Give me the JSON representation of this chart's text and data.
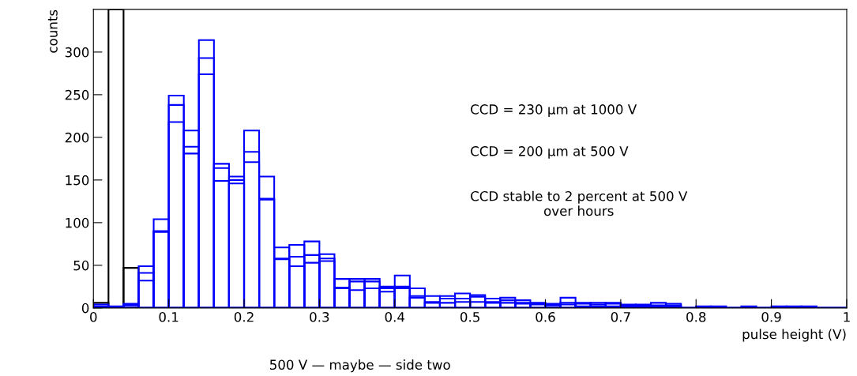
{
  "chart_data": {
    "type": "histogram",
    "xlabel": "pulse height (V)",
    "ylabel": "counts",
    "bins": [
      0,
      0.02,
      0.04,
      0.06,
      0.08,
      0.1,
      0.12,
      0.14,
      0.16,
      0.18,
      0.2,
      0.22,
      0.24,
      0.26,
      0.28,
      0.3,
      0.32,
      0.34,
      0.36,
      0.38,
      0.4,
      0.42,
      0.44,
      0.46,
      0.48,
      0.5,
      0.52,
      0.54,
      0.56,
      0.58,
      0.6,
      0.62,
      0.64,
      0.66,
      0.68,
      0.7,
      0.72,
      0.74,
      0.76,
      0.78,
      0.8,
      0.82,
      0.84,
      0.86,
      0.88,
      0.9,
      0.92,
      0.94,
      0.96,
      0.98,
      1
    ],
    "series": [
      {
        "color": "#000000",
        "values": [
          6,
          350,
          47,
          0,
          0,
          0,
          0,
          0,
          0,
          0,
          0,
          0,
          0,
          0,
          0,
          0,
          0,
          0,
          0,
          0,
          0,
          0,
          0,
          0,
          0,
          0,
          0,
          0,
          0,
          0,
          0,
          0,
          0,
          0,
          0,
          0,
          0,
          0,
          0,
          0,
          0,
          0,
          0,
          0,
          0,
          0,
          0,
          0,
          0,
          0
        ]
      },
      {
        "color": "#0000ff",
        "values": [
          4,
          2,
          5,
          49,
          104,
          249,
          208,
          314,
          169,
          154,
          208,
          154,
          71,
          74,
          78,
          63,
          34,
          34,
          34,
          25,
          38,
          23,
          14,
          14,
          17,
          15,
          11,
          12,
          9,
          6,
          5,
          12,
          6,
          6,
          6,
          4,
          4,
          6,
          5,
          0,
          2,
          2,
          0,
          2,
          0,
          2,
          2,
          2,
          0,
          0
        ]
      },
      {
        "color": "#0000ff",
        "values": [
          2,
          1,
          4,
          41,
          90,
          238,
          189,
          293,
          164,
          150,
          183,
          128,
          58,
          60,
          62,
          58,
          24,
          31,
          31,
          23,
          25,
          14,
          7,
          11,
          11,
          13,
          7,
          9,
          6,
          5,
          4,
          6,
          5,
          4,
          5,
          3,
          3,
          3,
          3,
          0,
          0,
          0,
          0,
          0,
          0,
          0,
          0,
          0,
          0,
          0
        ]
      },
      {
        "color": "#0000ff",
        "values": [
          1,
          0,
          3,
          32,
          89,
          218,
          181,
          274,
          149,
          146,
          171,
          127,
          57,
          49,
          53,
          55,
          23,
          21,
          23,
          19,
          23,
          12,
          6,
          6,
          7,
          7,
          6,
          6,
          5,
          4,
          3,
          4,
          2,
          2,
          2,
          2,
          2,
          2,
          2,
          0,
          0,
          0,
          0,
          0,
          0,
          0,
          0,
          0,
          0,
          0
        ]
      }
    ],
    "xlim": [
      0,
      1
    ],
    "ylim": [
      0,
      350
    ],
    "xticks": [
      0,
      0.1,
      0.2,
      0.3,
      0.4,
      0.5,
      0.6,
      0.7,
      0.8,
      0.9,
      1
    ],
    "yticks": [
      0,
      50,
      100,
      150,
      200,
      250,
      300
    ],
    "grid": false,
    "legend": false,
    "annotations": [
      "CCD = 230 μm at 1000 V",
      "CCD = 200 μm at 500 V",
      "CCD stable to 2 percent at 500 V\nover hours",
      "500 V — maybe — side two"
    ]
  }
}
